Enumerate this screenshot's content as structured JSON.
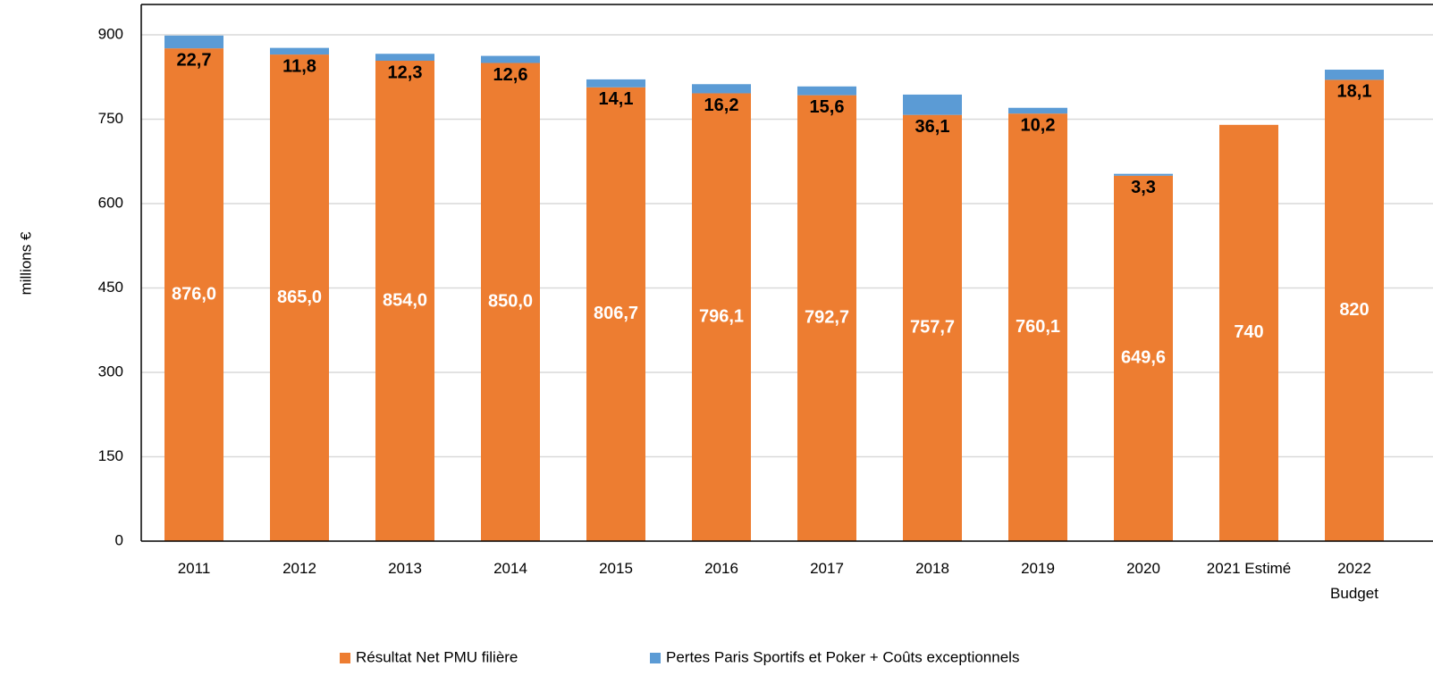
{
  "chart_data": {
    "type": "stacked_bar",
    "y_label": "millions €",
    "categories": [
      "2011",
      "2012",
      "2013",
      "2014",
      "2015",
      "2016",
      "2017",
      "2018",
      "2019",
      "2020",
      "2021 Estimé",
      "2022\nBudget"
    ],
    "series": [
      {
        "name": "Résultat Net PMU filière",
        "color": "#ED7D31",
        "label_color": "#ffffff",
        "values": [
          876.0,
          865.0,
          854.0,
          850.0,
          806.7,
          796.1,
          792.7,
          757.7,
          760.1,
          649.6,
          740,
          820
        ],
        "value_labels": [
          "876,0",
          "865,0",
          "854,0",
          "850,0",
          "806,7",
          "796,1",
          "792,7",
          "757,7",
          "760,1",
          "649,6",
          "740",
          "820"
        ]
      },
      {
        "name": "Pertes Paris Sportifs et Poker + Coûts exceptionnels",
        "color": "#5B9BD5",
        "label_color": "#000000",
        "values": [
          22.7,
          11.8,
          12.3,
          12.6,
          14.1,
          16.2,
          15.6,
          36.1,
          10.2,
          3.3,
          null,
          18.1
        ],
        "value_labels": [
          "22,7",
          "11,8",
          "12,3",
          "12,6",
          "14,1",
          "16,2",
          "15,6",
          "36,1",
          "10,2",
          "3,3",
          null,
          "18,1"
        ]
      }
    ],
    "ylim": [
      0,
      954
    ],
    "yticks": [
      0,
      150,
      300,
      450,
      600,
      750,
      900
    ],
    "grid": true,
    "legend": "bottom"
  }
}
